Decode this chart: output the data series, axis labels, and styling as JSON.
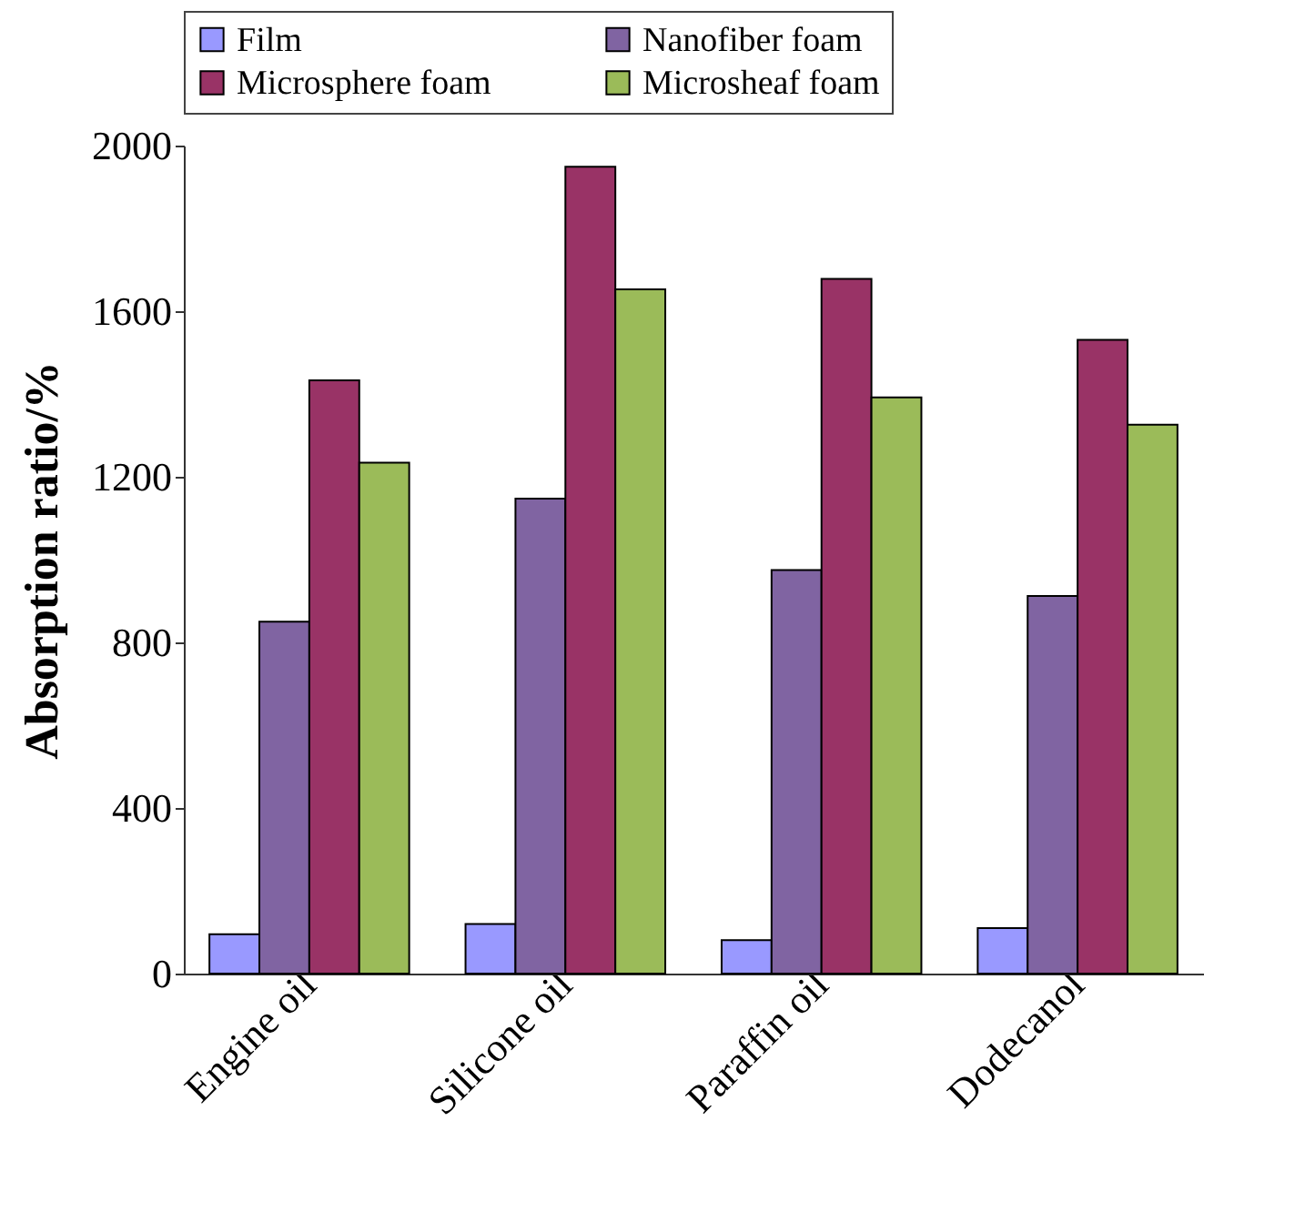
{
  "chart_data": {
    "type": "bar",
    "ylabel": "Absorption ratio/%",
    "categories": [
      "Engine oil",
      "Silicone oil",
      "Paraffin oil",
      "Dodecanol"
    ],
    "series": [
      {
        "name": "Film",
        "color": "#9999ff",
        "values": [
          95,
          120,
          81,
          110
        ]
      },
      {
        "name": "Nanofiber foam",
        "color": "#8064a2",
        "values": [
          850,
          1147,
          975,
          912
        ]
      },
      {
        "name": "Microsphere foam",
        "color": "#993366",
        "values": [
          1433,
          1949,
          1678,
          1531
        ]
      },
      {
        "name": "Microsheaf foam",
        "color": "#9bbb59",
        "values": [
          1234,
          1653,
          1392,
          1326
        ]
      }
    ],
    "ylim": [
      0,
      2000
    ],
    "yticks": [
      0,
      400,
      800,
      1200,
      1600,
      2000
    ],
    "grid": false,
    "legend": "top"
  }
}
